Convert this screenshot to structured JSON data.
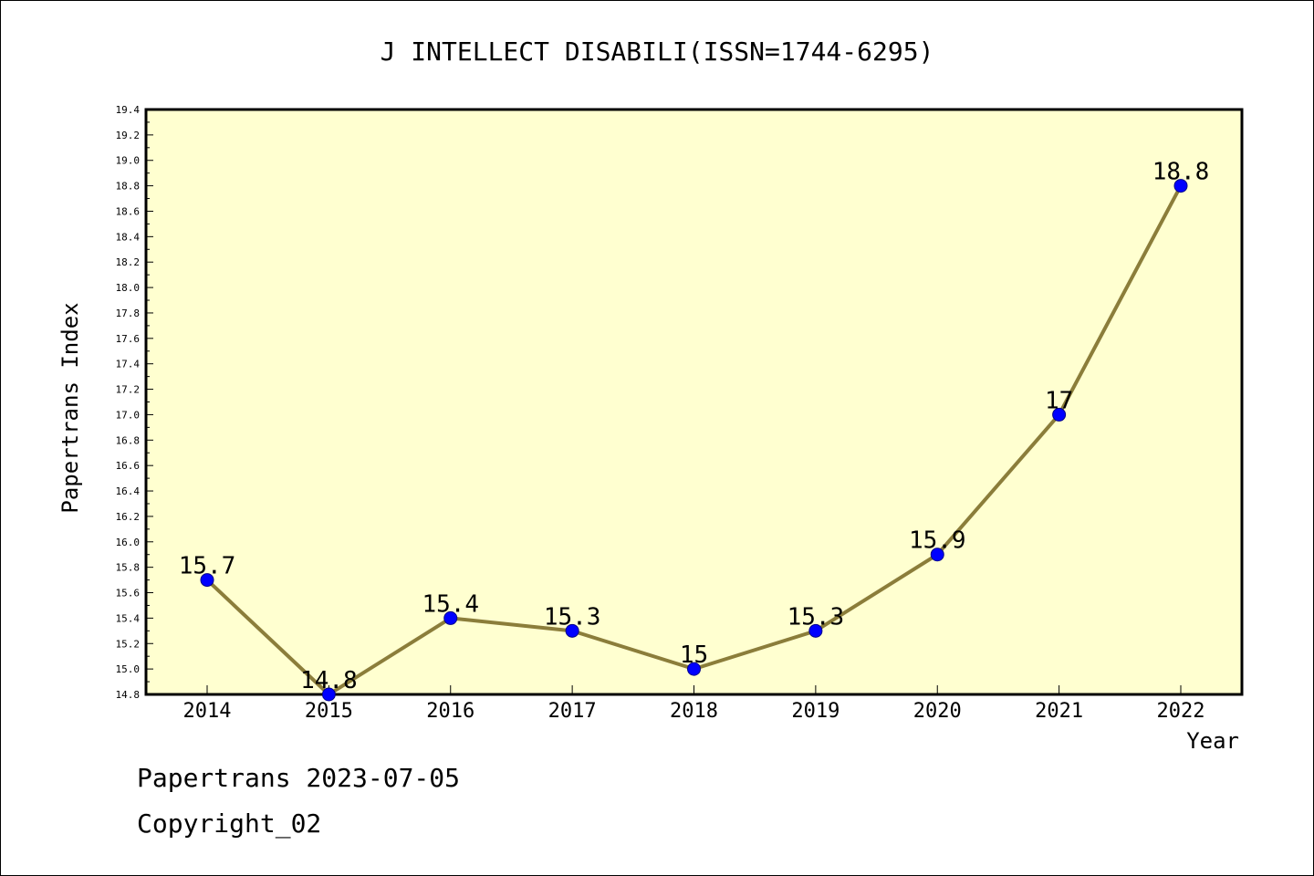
{
  "chart_data": {
    "type": "line",
    "title": "J INTELLECT DISABILI(ISSN=1744-6295)",
    "xlabel": "Year",
    "ylabel": "Papertrans Index",
    "categories": [
      "2014",
      "2015",
      "2016",
      "2017",
      "2018",
      "2019",
      "2020",
      "2021",
      "2022"
    ],
    "series": [
      {
        "values": [
          15.7,
          14.8,
          15.4,
          15.3,
          15.0,
          15.3,
          15.9,
          17.0,
          18.8
        ],
        "labels": [
          "15.7",
          "14.8",
          "15.4",
          "15.3",
          "15",
          "15.3",
          "15.9",
          "17",
          "18.8"
        ]
      }
    ],
    "ylim": [
      14.8,
      19.4
    ],
    "yticks": [
      "14.8",
      "15.0",
      "15.2",
      "15.4",
      "15.6",
      "15.8",
      "16.0",
      "16.2",
      "16.4",
      "16.6",
      "16.8",
      "17.0",
      "17.2",
      "17.4",
      "17.6",
      "17.8",
      "18.0",
      "18.2",
      "18.4",
      "18.6",
      "18.8",
      "19.0",
      "19.2",
      "19.4"
    ],
    "grid": false,
    "colors": {
      "plot_background": "#ffffd0",
      "line": "#8b7d3a",
      "marker": "#0000ff"
    }
  },
  "footer": {
    "date_line": "Papertrans 2023-07-05",
    "copyright": "Copyright_02"
  }
}
